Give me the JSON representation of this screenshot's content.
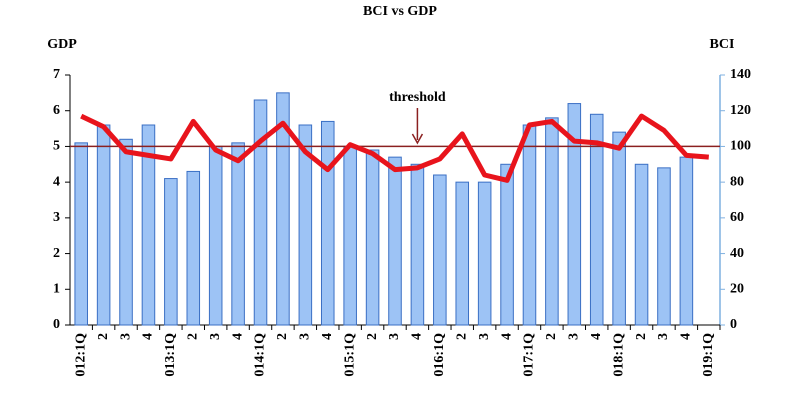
{
  "chart_data": {
    "type": "bar_line",
    "title": "BCI vs GDP",
    "y_label": "GDP",
    "y2_label": "BCI",
    "categories": [
      "012:1Q",
      "2",
      "3",
      "4",
      "013:1Q",
      "2",
      "3",
      "4",
      "014:1Q",
      "2",
      "3",
      "4",
      "015:1Q",
      "2",
      "3",
      "4",
      "016:1Q",
      "2",
      "3",
      "4",
      "017:1Q",
      "2",
      "3",
      "4",
      "018:1Q",
      "2",
      "3",
      "4",
      "019:1Q"
    ],
    "series": [
      {
        "name": "GDP",
        "type": "bar",
        "color": "#9dc3f5",
        "values": [
          5.1,
          5.6,
          5.2,
          5.6,
          4.1,
          4.3,
          5.0,
          5.1,
          6.3,
          6.5,
          5.6,
          5.7,
          5.0,
          4.9,
          4.7,
          4.5,
          4.2,
          4.0,
          4.0,
          4.5,
          5.6,
          5.8,
          6.2,
          5.9,
          5.4,
          4.5,
          4.4,
          4.7,
          null
        ]
      },
      {
        "name": "BCI",
        "type": "line",
        "axis": "y2",
        "color": "#e8141c",
        "values": [
          117,
          111,
          97,
          95,
          93,
          114,
          98,
          92,
          103,
          113,
          97,
          87,
          101,
          96,
          87,
          88,
          93,
          107,
          84,
          81,
          112,
          114,
          103,
          102,
          99,
          117,
          109,
          95,
          94
        ]
      }
    ],
    "ylim": [
      0,
      7
    ],
    "yticks": [
      0,
      1,
      2,
      3,
      4,
      5,
      6,
      7
    ],
    "y2lim": [
      0,
      140
    ],
    "y2ticks": [
      0,
      20,
      40,
      60,
      80,
      100,
      120,
      140
    ],
    "reference_line": {
      "value": 100,
      "axis": "y2",
      "color": "#8b2020"
    },
    "annotation": {
      "text": "threshold",
      "category_index": 15
    }
  }
}
